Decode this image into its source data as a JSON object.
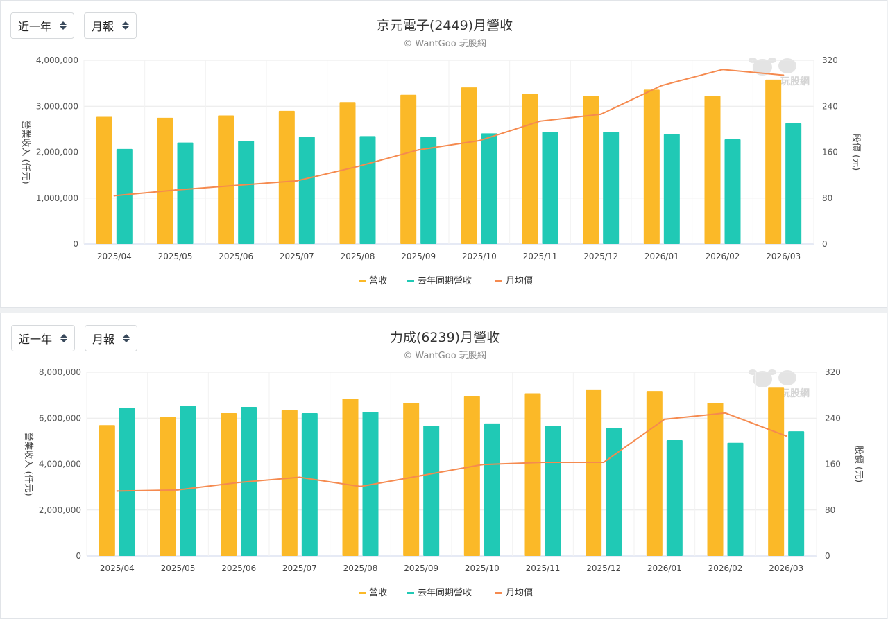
{
  "controls": {
    "range_label": "近一年",
    "period_label": "月報"
  },
  "legend": {
    "revenue": "營收",
    "last_year": "去年同期營收",
    "avg_price": "月均價"
  },
  "watermark": "玩股網",
  "colors": {
    "revenue": "#fbb928",
    "last_year": "#20c9b5",
    "avg_price": "#f58a4f",
    "grid": "#e8e8e8"
  },
  "chart_data": [
    {
      "type": "bar",
      "title": "京元電子(2449)月營收",
      "subtitle": "© WantGoo 玩股網",
      "ylabel": "營業收入 (仟元)",
      "y2label": "股價 (元)",
      "ylim": [
        0,
        4000000
      ],
      "y2lim": [
        0,
        320
      ],
      "yticks": [
        "0",
        "1,000,000",
        "2,000,000",
        "3,000,000",
        "4,000,000"
      ],
      "y2ticks": [
        "0",
        "80",
        "160",
        "240",
        "320"
      ],
      "categories": [
        "2025/04",
        "2025/05",
        "2025/06",
        "2025/07",
        "2025/08",
        "2025/09",
        "2025/10",
        "2025/11",
        "2025/12",
        "2026/01",
        "2026/02",
        "2026/03"
      ],
      "series": [
        {
          "name": "營收",
          "type": "bar",
          "values": [
            2770000,
            2750000,
            2800000,
            2900000,
            3090000,
            3250000,
            3410000,
            3270000,
            3230000,
            3360000,
            3220000,
            3580000
          ]
        },
        {
          "name": "去年同期營收",
          "type": "bar",
          "values": [
            2070000,
            2210000,
            2250000,
            2330000,
            2350000,
            2330000,
            2410000,
            2440000,
            2440000,
            2390000,
            2280000,
            2630000
          ]
        },
        {
          "name": "月均價",
          "type": "line",
          "axis": "right",
          "values": [
            84,
            94,
            102,
            110,
            135,
            164,
            180,
            214,
            226,
            276,
            304,
            294
          ]
        }
      ]
    },
    {
      "type": "bar",
      "title": "力成(6239)月營收",
      "subtitle": "© WantGoo 玩股網",
      "ylabel": "營業收入 (仟元)",
      "y2label": "股價 (元)",
      "ylim": [
        0,
        8000000
      ],
      "y2lim": [
        0,
        320
      ],
      "yticks": [
        "0",
        "2,000,000",
        "4,000,000",
        "6,000,000",
        "8,000,000"
      ],
      "y2ticks": [
        "0",
        "80",
        "160",
        "240",
        "320"
      ],
      "categories": [
        "2025/04",
        "2025/05",
        "2025/06",
        "2025/07",
        "2025/08",
        "2025/09",
        "2025/10",
        "2025/11",
        "2025/12",
        "2026/01",
        "2026/02",
        "2026/03"
      ],
      "series": [
        {
          "name": "營收",
          "type": "bar",
          "values": [
            5700000,
            6050000,
            6220000,
            6350000,
            6850000,
            6670000,
            6950000,
            7080000,
            7250000,
            7180000,
            6670000,
            7330000
          ]
        },
        {
          "name": "去年同期營收",
          "type": "bar",
          "values": [
            6460000,
            6530000,
            6490000,
            6220000,
            6280000,
            5670000,
            5770000,
            5670000,
            5570000,
            5040000,
            4930000,
            5430000
          ]
        },
        {
          "name": "月均價",
          "type": "line",
          "axis": "right",
          "values": [
            113,
            115,
            128,
            137,
            121,
            140,
            159,
            163,
            163,
            238,
            249,
            209
          ]
        }
      ]
    }
  ]
}
